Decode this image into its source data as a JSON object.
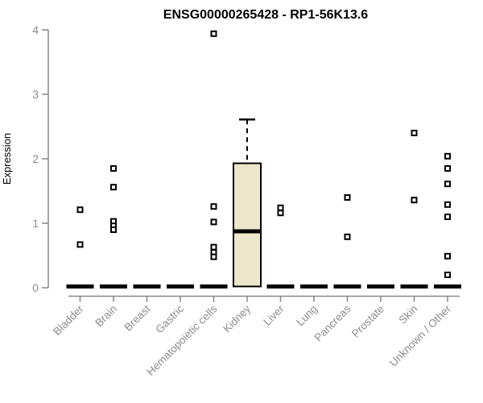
{
  "chart_data": {
    "type": "boxplot",
    "title": "ENSG00000265428 - RP1-56K13.6",
    "ylabel": "Expression",
    "xlabel": "",
    "ylim": [
      0,
      4
    ],
    "yticks": [
      0,
      1,
      2,
      3,
      4
    ],
    "grid": false,
    "legend": false,
    "categories": [
      "Bladder",
      "Brain",
      "Breast",
      "Gastric",
      "Hematopoietic cells",
      "Kidney",
      "Liver",
      "Lung",
      "Pancreas",
      "Prostate",
      "Skin",
      "Unknown / Other"
    ],
    "boxes": [
      {
        "category": "Bladder",
        "q1": 0.0,
        "median": 0.02,
        "q3": 0.04,
        "whisker_low": 0.0,
        "whisker_high": 0.04,
        "points": [
          1.21,
          0.67
        ]
      },
      {
        "category": "Brain",
        "q1": 0.0,
        "median": 0.02,
        "q3": 0.04,
        "whisker_low": 0.0,
        "whisker_high": 0.04,
        "points": [
          1.85,
          1.56,
          1.03,
          0.96,
          0.9
        ]
      },
      {
        "category": "Breast",
        "q1": 0.0,
        "median": 0.02,
        "q3": 0.04,
        "whisker_low": 0.0,
        "whisker_high": 0.04,
        "points": []
      },
      {
        "category": "Gastric",
        "q1": 0.0,
        "median": 0.02,
        "q3": 0.04,
        "whisker_low": 0.0,
        "whisker_high": 0.04,
        "points": []
      },
      {
        "category": "Hematopoietic cells",
        "q1": 0.0,
        "median": 0.02,
        "q3": 0.04,
        "whisker_low": 0.0,
        "whisker_high": 0.04,
        "points": [
          3.94,
          1.26,
          1.02,
          0.63,
          0.55,
          0.48
        ]
      },
      {
        "category": "Kidney",
        "q1": 0.02,
        "median": 0.875,
        "q3": 1.93,
        "whisker_low": 0.02,
        "whisker_high": 2.61,
        "points": []
      },
      {
        "category": "Liver",
        "q1": 0.0,
        "median": 0.02,
        "q3": 0.04,
        "whisker_low": 0.0,
        "whisker_high": 0.04,
        "points": [
          1.24,
          1.16
        ]
      },
      {
        "category": "Lung",
        "q1": 0.0,
        "median": 0.02,
        "q3": 0.04,
        "whisker_low": 0.0,
        "whisker_high": 0.04,
        "points": []
      },
      {
        "category": "Pancreas",
        "q1": 0.0,
        "median": 0.02,
        "q3": 0.04,
        "whisker_low": 0.0,
        "whisker_high": 0.04,
        "points": [
          1.4,
          0.79
        ]
      },
      {
        "category": "Prostate",
        "q1": 0.0,
        "median": 0.02,
        "q3": 0.04,
        "whisker_low": 0.0,
        "whisker_high": 0.04,
        "points": []
      },
      {
        "category": "Skin",
        "q1": 0.0,
        "median": 0.02,
        "q3": 0.04,
        "whisker_low": 0.0,
        "whisker_high": 0.04,
        "points": [
          2.4,
          1.36
        ]
      },
      {
        "category": "Unknown / Other",
        "q1": 0.0,
        "median": 0.02,
        "q3": 0.04,
        "whisker_low": 0.0,
        "whisker_high": 0.04,
        "points": [
          2.04,
          1.85,
          1.61,
          1.29,
          1.1,
          0.49,
          0.2
        ]
      }
    ],
    "colors": {
      "box_fill": "#ece7cb",
      "box_border": "#000000",
      "median": "#000000",
      "point": "#000000",
      "axis": "#878787",
      "tick_label": "#8c8c8c",
      "title": "#000000"
    }
  }
}
